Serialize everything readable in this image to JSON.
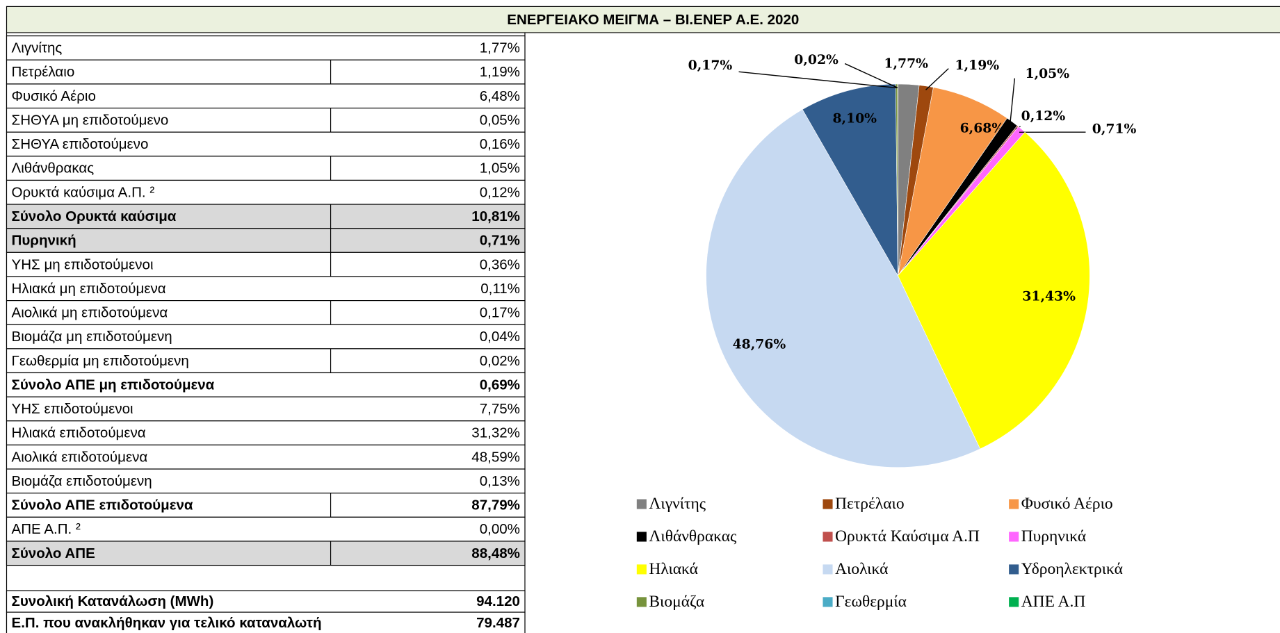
{
  "title": "ΕΝΕΡΓΕΙΑΚΟ ΜΕΙΓΜΑ – ΒΙ.ΕΝΕΡ Α.Ε. 2020",
  "table": {
    "rows": [
      {
        "label": "Λιγνίτης",
        "value": "1,77%"
      },
      {
        "label": "Πετρέλαιο",
        "value": "1,19%"
      },
      {
        "label": "Φυσικό Αέριο",
        "value": "6,48%"
      },
      {
        "label": "ΣΗΘΥΑ μη επιδοτούμενο",
        "value": "0,05%"
      },
      {
        "label": "ΣΗΘΥΑ επιδοτούμενο",
        "value": "0,16%"
      },
      {
        "label": "Λιθάνθρακας",
        "value": "1,05%"
      },
      {
        "label": "Ορυκτά καύσιμα Α.Π. ²",
        "value": "0,12%"
      },
      {
        "label": "Σύνολο Ορυκτά καύσιμα",
        "value": "10,81%",
        "total": true
      },
      {
        "label": "Πυρηνική",
        "value": "0,71%",
        "total": true
      },
      {
        "label": "ΥΗΣ μη επιδοτούμενοι",
        "value": "0,36%"
      },
      {
        "label": "Ηλιακά μη επιδοτούμενα",
        "value": "0,11%"
      },
      {
        "label": "Αιολικά μη επιδοτούμενα",
        "value": "0,17%"
      },
      {
        "label": "Βιομάζα μη επιδοτούμενη",
        "value": "0,04%"
      },
      {
        "label": "Γεωθερμία μη επιδοτούμενη",
        "value": "0,02%"
      },
      {
        "label": "Σύνολο ΑΠΕ μη επιδοτούμενα",
        "value": "0,69%",
        "bold": true
      },
      {
        "label": "ΥΗΣ επιδοτούμενοι",
        "value": "7,75%"
      },
      {
        "label": "Ηλιακά επιδοτούμενα",
        "value": "31,32%"
      },
      {
        "label": "Αιολικά επιδοτούμενα",
        "value": "48,59%"
      },
      {
        "label": "Βιομάζα επιδοτούμενη",
        "value": "0,13%"
      },
      {
        "label": "Σύνολο ΑΠΕ επιδοτούμενα",
        "value": "87,79%",
        "bold": true
      },
      {
        "label": "ΑΠΕ Α.Π. ²",
        "value": "0,00%"
      },
      {
        "label": "Σύνολο ΑΠΕ",
        "value": "88,48%",
        "total": true
      }
    ],
    "summary": [
      {
        "label": "Συνολική Κατανάλωση (MWh)",
        "value": "94.120"
      },
      {
        "label": "Ε.Π. που ανακλήθηκαν για τελικό καταναλωτή",
        "value": "79.487"
      }
    ]
  },
  "chart_data": {
    "type": "pie",
    "categories": [
      "Λιγνίτης",
      "Πετρέλαιο",
      "Φυσικό Αέριο",
      "Λιθάνθρακας",
      "Ορυκτά Καύσιμα Α.Π",
      "Πυρηνικά",
      "Ηλιακά",
      "Αιολικά",
      "Υδροηλεκτρικά",
      "Βιομάζα",
      "Γεωθερμία",
      "ΑΠΕ Α.Π"
    ],
    "values": [
      1.77,
      1.19,
      6.68,
      1.05,
      0.12,
      0.71,
      31.43,
      48.76,
      8.1,
      0.17,
      0.02,
      0
    ],
    "value_labels": [
      "1,77%",
      "1,19%",
      "6,68%",
      "1,05%",
      "0,12%",
      "0,71%",
      "31,43%",
      "48,76%",
      "8,10%",
      "0,17%",
      "0,02%",
      null
    ],
    "colors": [
      "#808080",
      "#9e480e",
      "#f79646",
      "#000000",
      "#c0504d",
      "#ff66ff",
      "#ffff00",
      "#c6d9f1",
      "#325d8e",
      "#77933c",
      "#4bacc6",
      "#00b050"
    ],
    "legend": "bottom"
  }
}
